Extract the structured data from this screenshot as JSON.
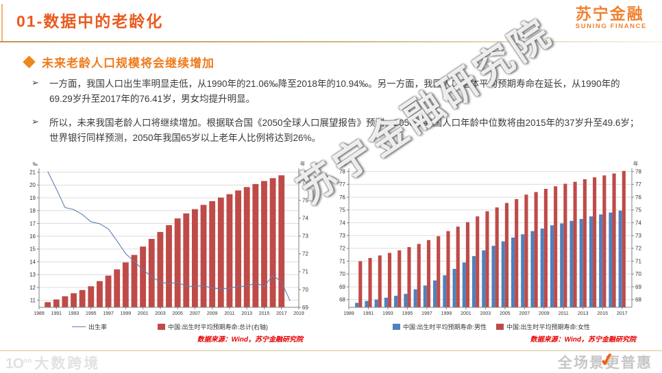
{
  "header": {
    "title": "01-数据中的老龄化",
    "logo_cn": "苏宁金融",
    "logo_en": "SUNING FINANCE"
  },
  "section": {
    "title": "未来老龄人口规模将会继续增加"
  },
  "paragraphs": [
    {
      "marker": "➢",
      "text": "一方面，我国人口出生率明显走低，从1990年的21.06‰降至2018年的10.94‰。另一方面，我国人口整体平均预期寿命在延长，从1990年的69.29岁升至2017年的76.41岁，男女均提升明显。"
    },
    {
      "marker": "➢",
      "text": "所以，未来我国老龄人口将继续增加。根据联合国《2050全球人口展望报告》预测，2050年我国人口年龄中位数将由2015年的37岁升至49.6岁；世界银行同样预测，2050年我国65岁以上老年人比例将达到26%。"
    }
  ],
  "watermarks": {
    "diagonal": "苏宁金融研究院",
    "footer_left_icon": "1O",
    "footer_left_icon_sup": "oo",
    "footer_left": "大数跨境",
    "footer_right": "全场景更普惠",
    "footer_right_check": "✓"
  },
  "colors": {
    "accent_orange": "#ea5a1e",
    "section_orange": "#ef7b1c",
    "logo_orange": "#f08130",
    "source_red": "#e60000",
    "bar_red": "#be4b48",
    "bar_blue": "#4f81bd",
    "line_blue": "#5b7fb0",
    "grid_gray": "#dcdcdc",
    "axis_gray": "#7f7f7f"
  },
  "chart_data": [
    {
      "type": "combo line+bar, dual axis",
      "grid": "yLeft",
      "gridColor": "#dcdcdc",
      "axisColor": "#7f7f7f",
      "x": {
        "min": 1989,
        "max": 2019,
        "ticks": [
          1989,
          1991,
          1993,
          1995,
          1997,
          1999,
          2001,
          2003,
          2005,
          2007,
          2009,
          2011,
          2013,
          2015,
          2017,
          2019
        ]
      },
      "yLeft": {
        "unit": "‰",
        "min": 10.45,
        "max": 21.3,
        "ticks": [
          11,
          12,
          13,
          14,
          15,
          16,
          17,
          18,
          19,
          20,
          21
        ]
      },
      "yRight": {
        "unit": "年",
        "min": 69,
        "max": 76.8,
        "ticks": [
          69,
          70,
          71,
          72,
          73,
          74,
          75,
          76
        ]
      },
      "line": {
        "name": "出生率",
        "scale": "yLeft",
        "color": "#5b7fb0",
        "start": 1990,
        "values": [
          21.06,
          19.68,
          18.24,
          18.09,
          17.7,
          17.12,
          16.98,
          16.57,
          15.64,
          14.64,
          14.03,
          13.38,
          12.86,
          12.41,
          12.29,
          12.4,
          12.09,
          12.1,
          12.14,
          11.95,
          11.9,
          11.93,
          12.1,
          12.08,
          12.37,
          12.07,
          12.95,
          12.43,
          10.94
        ]
      },
      "bars": [
        {
          "name": "中国:出生时平均预期寿命:总计(右轴)",
          "scale": "yRight",
          "color": "#be4b48",
          "start": 1990,
          "width": 0.7,
          "offset": 0,
          "values": [
            69.29,
            69.44,
            69.62,
            69.79,
            69.97,
            70.18,
            70.47,
            70.78,
            71.13,
            71.52,
            71.94,
            72.41,
            72.84,
            73.23,
            73.61,
            73.99,
            74.27,
            74.51,
            74.75,
            74.96,
            75.16,
            75.35,
            75.56,
            75.75,
            75.92,
            76.09,
            76.25,
            76.41
          ]
        }
      ],
      "source": "数据来源：Wind，苏宁金融研究院"
    },
    {
      "type": "grouped bar",
      "grid": "yLeft",
      "gridColor": "#dcdcdc",
      "axisColor": "#7f7f7f",
      "x": {
        "min": 1989,
        "max": 2018,
        "ticks": [
          1989,
          1991,
          1993,
          1995,
          1997,
          1999,
          2001,
          2003,
          2005,
          2007,
          2009,
          2011,
          2013,
          2015,
          2017
        ]
      },
      "yLeft": {
        "unit": "年",
        "min": 67.4,
        "max": 78.25,
        "ticks": [
          68,
          69,
          70,
          71,
          72,
          73,
          74,
          75,
          76,
          77,
          78
        ]
      },
      "yRight": {
        "unit": "年",
        "min": 67.4,
        "max": 78.25,
        "ticks": [
          68,
          69,
          70,
          71,
          72,
          73,
          74,
          75,
          76,
          77,
          78
        ]
      },
      "bars": [
        {
          "name": "中国:出生时平均预期寿命:男性",
          "scale": "yLeft",
          "color": "#4f81bd",
          "start": 1990,
          "width": 0.36,
          "offset": -0.18,
          "values": [
            67.75,
            67.9,
            68.0,
            68.15,
            68.3,
            68.45,
            68.8,
            69.1,
            69.5,
            69.9,
            70.4,
            70.9,
            71.4,
            71.85,
            72.2,
            72.55,
            72.85,
            73.1,
            73.35,
            73.55,
            73.8,
            73.95,
            74.15,
            74.3,
            74.5,
            74.65,
            74.8,
            74.95
          ]
        },
        {
          "name": "中国:出生时平均预期寿命:女性",
          "scale": "yLeft",
          "color": "#be4b48",
          "start": 1990,
          "width": 0.36,
          "offset": 0.18,
          "values": [
            71.0,
            71.25,
            71.45,
            71.65,
            71.85,
            72.1,
            72.35,
            72.65,
            72.95,
            73.35,
            73.7,
            74.05,
            74.5,
            74.9,
            75.2,
            75.55,
            75.85,
            76.2,
            76.4,
            76.65,
            76.85,
            77.05,
            77.2,
            77.4,
            77.55,
            77.7,
            77.85,
            78.05
          ]
        }
      ],
      "source": "数据来源：Wind，苏宁金融研究院"
    }
  ]
}
